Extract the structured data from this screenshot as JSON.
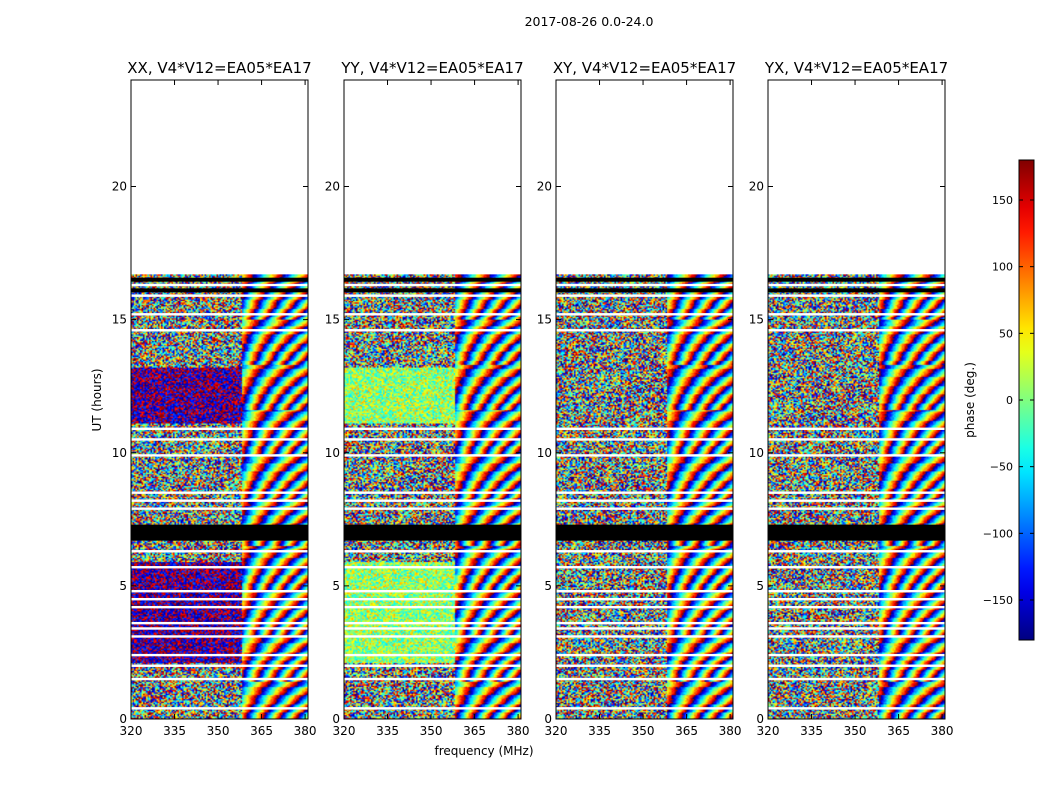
{
  "figure": {
    "suptitle": "2017-08-26 0.0-24.0",
    "xlabel": "frequency (MHz)",
    "ylabel": "UT (hours)",
    "colorbar_label": "phase (deg.)"
  },
  "chart_data": {
    "type": "heatmap",
    "title": "2017-08-26 0.0-24.0",
    "xlabel": "frequency (MHz)",
    "ylabel": "UT (hours)",
    "xlim": [
      320,
      381
    ],
    "ylim": [
      0,
      24
    ],
    "xticks": [
      "320",
      "335",
      "350",
      "365",
      "380"
    ],
    "xtick_values": [
      320,
      335,
      350,
      365,
      380
    ],
    "yticks": [
      "0",
      "5",
      "10",
      "15",
      "20"
    ],
    "ytick_values": [
      0,
      5,
      10,
      15,
      20
    ],
    "data_extent_hours": [
      0,
      16.7
    ],
    "colormap": "jet",
    "colorbar": {
      "label": "phase (deg.)",
      "range": [
        -180,
        180
      ],
      "ticks": [
        "150",
        "100",
        "50",
        "0",
        "−50",
        "−100",
        "−150"
      ],
      "tick_values": [
        150,
        100,
        50,
        0,
        -50,
        -100,
        -150
      ]
    },
    "flagged_bands_hours": [
      [
        6.7,
        7.3
      ]
    ],
    "gap_rows_hours": [
      0.4,
      1.5,
      2.0,
      2.4,
      3.1,
      3.4,
      3.6,
      4.2,
      4.5,
      4.8,
      5.7,
      6.3,
      7.9,
      8.2,
      8.5,
      9.9,
      10.5,
      10.9,
      14.6,
      15.2,
      15.9,
      16.3
    ],
    "panels": [
      {
        "title": "XX, V4*V12=EA05*EA17",
        "mode": "xx"
      },
      {
        "title": "YY, V4*V12=EA05*EA17",
        "mode": "yy"
      },
      {
        "title": "XY, V4*V12=EA05*EA17",
        "mode": "xy"
      },
      {
        "title": "YX, V4*V12=EA05*EA17",
        "mode": "yx"
      }
    ]
  }
}
